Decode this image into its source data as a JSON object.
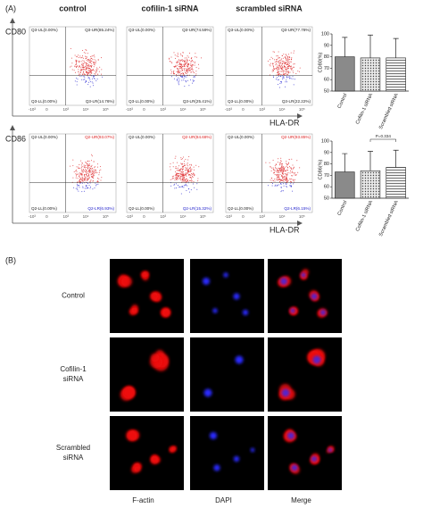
{
  "panel_a": {
    "label": "(A)",
    "columns": [
      "control",
      "cofilin-1 siRNA",
      "scrambled siRNA"
    ],
    "axis_ticks": [
      "-10³",
      "0",
      "10³",
      "10⁴",
      "10⁵"
    ],
    "rows": [
      {
        "y_axis_label": "CD80",
        "x_axis_label": "HLA-DR",
        "plots": [
          {
            "ul": "Q3-UL(0.00%)",
            "ur": "Q3-UR(85.24%)",
            "ll": "Q3-LL(0.00%)",
            "lr": "Q3-LR(14.76%)"
          },
          {
            "ul": "Q3-UL(0.00%)",
            "ur": "Q3-UR(74.59%)",
            "ll": "Q3-LL(0.00%)",
            "lr": "Q3-LR(25.41%)"
          },
          {
            "ul": "Q3-UL(0.00%)",
            "ur": "Q3-UR(77.78%)",
            "ll": "Q3-LL(0.00%)",
            "lr": "Q3-LR(22.22%)"
          }
        ],
        "bar_chart": {
          "type": "bar",
          "y_label": "CD80(%)",
          "categories": [
            "Control",
            "Cofilin-1 siRNA",
            "Scrambled siRNA"
          ],
          "values": [
            80,
            79,
            79
          ],
          "errors": [
            17,
            20,
            17
          ],
          "ylim": [
            50,
            100
          ],
          "yticks": [
            50,
            60,
            70,
            80,
            90,
            100
          ]
        }
      },
      {
        "y_axis_label": "CD86",
        "x_axis_label": "HLA-DR",
        "plots": [
          {
            "ul": "Q2-UL(0.00%)",
            "ur": "Q2-UR(93.07%)",
            "ll": "Q2-LL(0.00%)",
            "lr": "Q2-LR(6.93%)"
          },
          {
            "ul": "Q2-UL(0.00%)",
            "ur": "Q2-UR(84.68%)",
            "ll": "Q2-LL(0.00%)",
            "lr": "Q2-LR(15.32%)"
          },
          {
            "ul": "Q2-UL(0.00%)",
            "ur": "Q2-UR(93.85%)",
            "ll": "Q2-LL(0.00%)",
            "lr": "Q2-LR(6.15%)"
          }
        ],
        "bar_chart": {
          "type": "bar",
          "y_label": "CD86(%)",
          "categories": [
            "Control",
            "Cofilin-1 siRNA",
            "Scrambled siRNA"
          ],
          "values": [
            73,
            74,
            77
          ],
          "errors": [
            16,
            17,
            15
          ],
          "ylim": [
            50,
            100
          ],
          "yticks": [
            50,
            60,
            70,
            80,
            90,
            100
          ],
          "annotation": "P=0.334"
        }
      }
    ]
  },
  "panel_b": {
    "label": "(B)",
    "rows": [
      [
        "Control"
      ],
      [
        "Cofilin-1",
        "siRNA"
      ],
      [
        "Scrambled",
        "siRNA"
      ]
    ],
    "columns": [
      "F-actin",
      "DAPI",
      "Merge"
    ]
  }
}
